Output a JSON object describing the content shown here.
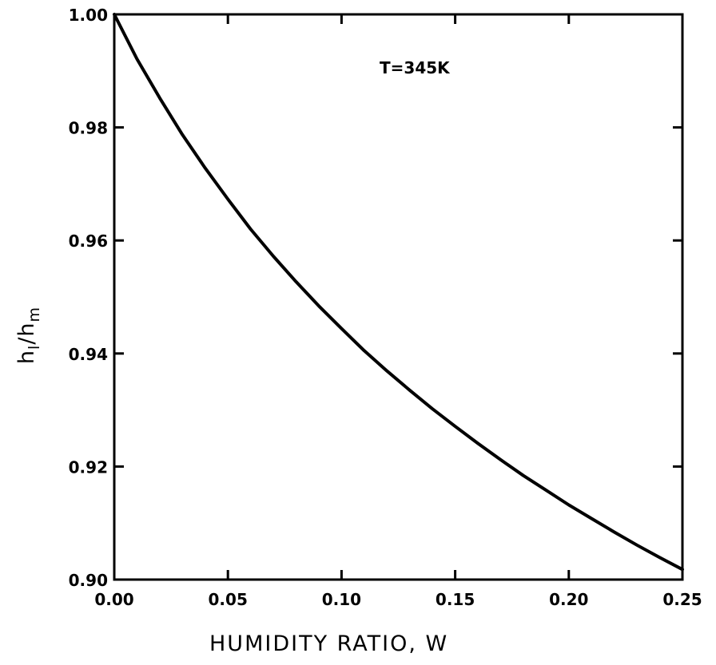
{
  "chart_data": {
    "type": "line",
    "title": "",
    "xlabel": "HUMIDITY RATIO, W",
    "ylabel": "h_l/h_m",
    "ylabel_main": "h",
    "ylabel_sub1": "l",
    "ylabel_slash": "/",
    "ylabel_sub2": "m",
    "annotation": "T=345K",
    "xlim": [
      0.0,
      0.25
    ],
    "ylim": [
      0.9,
      1.0
    ],
    "xticks": [
      0.0,
      0.05,
      0.1,
      0.15,
      0.2,
      0.25
    ],
    "xtick_labels": [
      "0.00",
      "0.05",
      "0.10",
      "0.15",
      "0.20",
      "0.25"
    ],
    "yticks": [
      0.9,
      0.92,
      0.94,
      0.96,
      0.98,
      1.0
    ],
    "ytick_labels": [
      "0.90",
      "0.92",
      "0.94",
      "0.96",
      "0.98",
      "1.00"
    ],
    "grid": false,
    "series": [
      {
        "x": [
          0.0,
          0.01,
          0.02,
          0.03,
          0.04,
          0.05,
          0.06,
          0.07,
          0.08,
          0.09,
          0.1,
          0.11,
          0.12,
          0.13,
          0.14,
          0.15,
          0.16,
          0.17,
          0.18,
          0.19,
          0.2,
          0.21,
          0.22,
          0.23,
          0.24,
          0.25
        ],
        "y": [
          1.0,
          0.9921,
          0.9852,
          0.9787,
          0.9728,
          0.9673,
          0.962,
          0.9572,
          0.9527,
          0.9484,
          0.9444,
          0.9405,
          0.9369,
          0.9335,
          0.9302,
          0.9271,
          0.9241,
          0.9212,
          0.9184,
          0.9158,
          0.9132,
          0.9108,
          0.9084,
          0.9061,
          0.9039,
          0.9018
        ],
        "color": "#000000"
      }
    ]
  }
}
